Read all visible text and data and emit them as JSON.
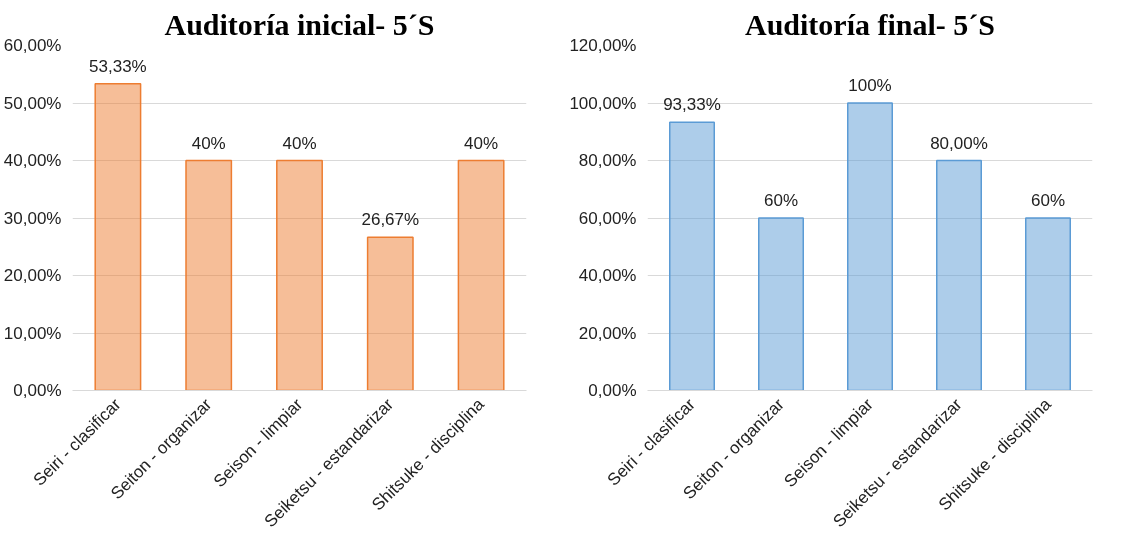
{
  "chart_data": [
    {
      "type": "bar",
      "title": "Auditoría inicial- 5´S",
      "categories": [
        "Seiri - clasificar",
        "Seiton - organizar",
        "Seison - limpiar",
        "Seiketsu - estandarizar",
        "Shitsuke - disciplina"
      ],
      "values": [
        53.33,
        40,
        40,
        26.67,
        40
      ],
      "value_labels": [
        "53,33%",
        "40%",
        "40%",
        "26,67%",
        "40%"
      ],
      "color": "#ed7d31",
      "ylim": [
        0,
        60
      ],
      "yticks": [
        {
          "value": 0,
          "label": "0,00%"
        },
        {
          "value": 10,
          "label": "10,00%"
        },
        {
          "value": 20,
          "label": "20,00%"
        },
        {
          "value": 30,
          "label": "30,00%"
        },
        {
          "value": 40,
          "label": "40,00%"
        },
        {
          "value": 50,
          "label": "50,00%"
        },
        {
          "value": 60,
          "label": "60,00%"
        }
      ],
      "grid": "y"
    },
    {
      "type": "bar",
      "title": "Auditoría final- 5´S",
      "categories": [
        "Seiri - clasificar",
        "Seiton - organizar",
        "Seison - limpiar",
        "Seiketsu - estandarizar",
        "Shitsuke - disciplina"
      ],
      "values": [
        93.33,
        60,
        100,
        80,
        60
      ],
      "value_labels": [
        "93,33%",
        "60%",
        "100%",
        "80,00%",
        "60%"
      ],
      "color": "#5b9bd5",
      "ylim": [
        0,
        120
      ],
      "yticks": [
        {
          "value": 0,
          "label": "0,00%"
        },
        {
          "value": 20,
          "label": "20,00%"
        },
        {
          "value": 40,
          "label": "40,00%"
        },
        {
          "value": 60,
          "label": "60,00%"
        },
        {
          "value": 80,
          "label": "80,00%"
        },
        {
          "value": 100,
          "label": "100,00%"
        },
        {
          "value": 120,
          "label": "120,00%"
        }
      ],
      "grid": "y"
    }
  ]
}
